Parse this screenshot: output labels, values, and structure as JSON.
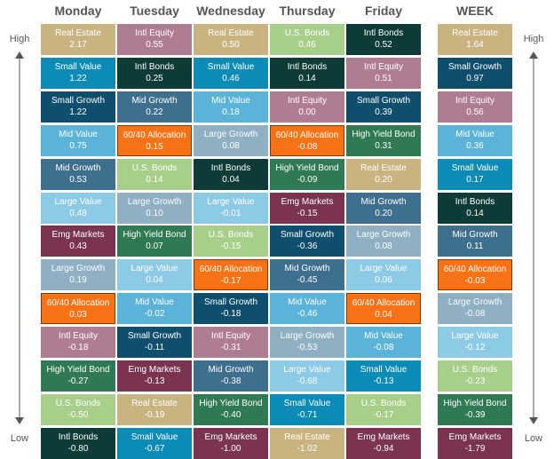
{
  "title": "",
  "side_labels": {
    "high": "High",
    "low": "Low"
  },
  "colors": {
    "Real Estate": "#c9b381",
    "Small Value": "#0b8bb5",
    "Small Growth": "#0f4e6c",
    "Mid Value": "#5bb3d8",
    "Mid Growth": "#3f6f8f",
    "Large Value": "#8dcae6",
    "Large Growth": "#8fafc3",
    "Emg Markets": "#7a3450",
    "60/40 Allocation": "#f97316",
    "Intl Equity": "#b07c92",
    "High Yield Bond": "#2f7a53",
    "U.S. Bonds": "#a8cf8a",
    "Intl Bonds": "#0d3b37"
  },
  "chart_data": {
    "type": "table",
    "columns": [
      {
        "header": "Monday",
        "cells": [
          {
            "name": "Real Estate",
            "value": "2.17"
          },
          {
            "name": "Small Value",
            "value": "1.22"
          },
          {
            "name": "Small Growth",
            "value": "1.22"
          },
          {
            "name": "Mid Value",
            "value": "0.75"
          },
          {
            "name": "Mid Growth",
            "value": "0.53"
          },
          {
            "name": "Large Value",
            "value": "0.48"
          },
          {
            "name": "Emg Markets",
            "value": "0.43"
          },
          {
            "name": "Large Growth",
            "value": "0.19"
          },
          {
            "name": "60/40 Allocation",
            "value": "0.03"
          },
          {
            "name": "Intl Equity",
            "value": "-0.18"
          },
          {
            "name": "High Yield Bond",
            "value": "-0.27"
          },
          {
            "name": "U.S. Bonds",
            "value": "-0.50"
          },
          {
            "name": "Intl Bonds",
            "value": "-0.80"
          }
        ]
      },
      {
        "header": "Tuesday",
        "cells": [
          {
            "name": "Intl Equity",
            "value": "0.55"
          },
          {
            "name": "Intl Bonds",
            "value": "0.25"
          },
          {
            "name": "Mid Growth",
            "value": "0.22"
          },
          {
            "name": "60/40 Allocation",
            "value": "0.15"
          },
          {
            "name": "U.S. Bonds",
            "value": "0.14"
          },
          {
            "name": "Large Growth",
            "value": "0.10"
          },
          {
            "name": "High Yield Bond",
            "value": "0.07"
          },
          {
            "name": "Large Value",
            "value": "0.04"
          },
          {
            "name": "Mid Value",
            "value": "-0.02"
          },
          {
            "name": "Small Growth",
            "value": "-0.11"
          },
          {
            "name": "Emg Markets",
            "value": "-0.13"
          },
          {
            "name": "Real Estate",
            "value": "-0.19"
          },
          {
            "name": "Small Value",
            "value": "-0.67"
          }
        ]
      },
      {
        "header": "Wednesday",
        "cells": [
          {
            "name": "Real Estate",
            "value": "0.50"
          },
          {
            "name": "Small Value",
            "value": "0.46"
          },
          {
            "name": "Mid Value",
            "value": "0.18"
          },
          {
            "name": "Large Growth",
            "value": "0.08"
          },
          {
            "name": "Intl Bonds",
            "value": "0.04"
          },
          {
            "name": "Large Value",
            "value": "-0.01"
          },
          {
            "name": "U.S. Bonds",
            "value": "-0.15"
          },
          {
            "name": "60/40 Allocation",
            "value": "-0.17"
          },
          {
            "name": "Small Growth",
            "value": "-0.18"
          },
          {
            "name": "Intl Equity",
            "value": "-0.31"
          },
          {
            "name": "Mid Growth",
            "value": "-0.38"
          },
          {
            "name": "High Yield Bond",
            "value": "-0.40"
          },
          {
            "name": "Emg Markets",
            "value": "-1.00"
          }
        ]
      },
      {
        "header": "Thursday",
        "cells": [
          {
            "name": "U.S. Bonds",
            "value": "0.46"
          },
          {
            "name": "Intl Bonds",
            "value": "0.14"
          },
          {
            "name": "Intl Equity",
            "value": "0.00"
          },
          {
            "name": "60/40 Allocation",
            "value": "-0.08"
          },
          {
            "name": "High Yield Bond",
            "value": "-0.09"
          },
          {
            "name": "Emg Markets",
            "value": "-0.15"
          },
          {
            "name": "Small Growth",
            "value": "-0.36"
          },
          {
            "name": "Mid Growth",
            "value": "-0.45"
          },
          {
            "name": "Mid Value",
            "value": "-0.46"
          },
          {
            "name": "Large Growth",
            "value": "-0.53"
          },
          {
            "name": "Large Value",
            "value": "-0.68"
          },
          {
            "name": "Small Value",
            "value": "-0.71"
          },
          {
            "name": "Real Estate",
            "value": "-1.02"
          }
        ]
      },
      {
        "header": "Friday",
        "cells": [
          {
            "name": "Intl Bonds",
            "value": "0.52"
          },
          {
            "name": "Intl Equity",
            "value": "0.51"
          },
          {
            "name": "Small Growth",
            "value": "0.39"
          },
          {
            "name": "High Yield Bond",
            "value": "0.31"
          },
          {
            "name": "Real Estate",
            "value": "0.20"
          },
          {
            "name": "Mid Growth",
            "value": "0.20"
          },
          {
            "name": "Large Growth",
            "value": "0.08"
          },
          {
            "name": "Large Value",
            "value": "0.06"
          },
          {
            "name": "60/40 Allocation",
            "value": "0.04"
          },
          {
            "name": "Mid Value",
            "value": "-0.08"
          },
          {
            "name": "Small Value",
            "value": "-0.13"
          },
          {
            "name": "U.S. Bonds",
            "value": "-0.17"
          },
          {
            "name": "Emg Markets",
            "value": "-0.94"
          }
        ]
      },
      {
        "header": "WEEK",
        "cells": [
          {
            "name": "Real Estate",
            "value": "1.64"
          },
          {
            "name": "Small Growth",
            "value": "0.97"
          },
          {
            "name": "Intl Equity",
            "value": "0.56"
          },
          {
            "name": "Mid Value",
            "value": "0.36"
          },
          {
            "name": "Small Value",
            "value": "0.17"
          },
          {
            "name": "Intl Bonds",
            "value": "0.14"
          },
          {
            "name": "Mid Growth",
            "value": "0.11"
          },
          {
            "name": "60/40 Allocation",
            "value": "-0.03"
          },
          {
            "name": "Large Growth",
            "value": "-0.08"
          },
          {
            "name": "Large Value",
            "value": "-0.12"
          },
          {
            "name": "U.S. Bonds",
            "value": "-0.23"
          },
          {
            "name": "High Yield Bond",
            "value": "-0.39"
          },
          {
            "name": "Emg Markets",
            "value": "-1.79"
          }
        ]
      }
    ]
  }
}
